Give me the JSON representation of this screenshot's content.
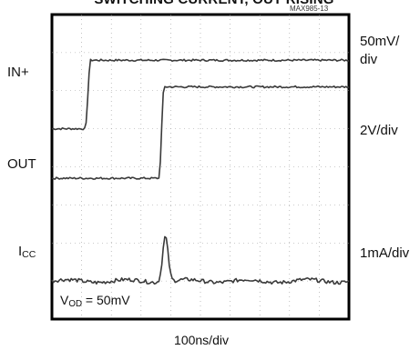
{
  "title": "SWITCHING CURRENT, OUT RISING",
  "figure_id": "MAX985-13",
  "chart_data": {
    "type": "line",
    "title": "SWITCHING CURRENT, OUT RISING",
    "x_scale": "100ns/div",
    "channels": [
      {
        "name": "IN+",
        "label_main": "IN+",
        "label_sub": "",
        "scale": "50mV/div",
        "scale_line1": "50mV/",
        "scale_line2": "div",
        "waveform": "step-up",
        "edge_div": 1.12,
        "low_level_div": 5.0,
        "high_level_div": 6.8
      },
      {
        "name": "OUT",
        "label_main": "OUT",
        "label_sub": "",
        "scale": "2V/div",
        "waveform": "step-up",
        "edge_div": 3.6,
        "low_level_div": 3.7,
        "high_level_div": 6.1
      },
      {
        "name": "ICC",
        "label_main": "I",
        "label_sub": "CC",
        "scale": "1mA/div",
        "waveform": "pulse",
        "pulse_div": 3.82,
        "baseline_div": 1.0,
        "pulse_height_div": 1.2
      }
    ],
    "annotation": {
      "main": "V",
      "sub": "OD",
      "rest": " = 50mV"
    },
    "grid": true
  }
}
